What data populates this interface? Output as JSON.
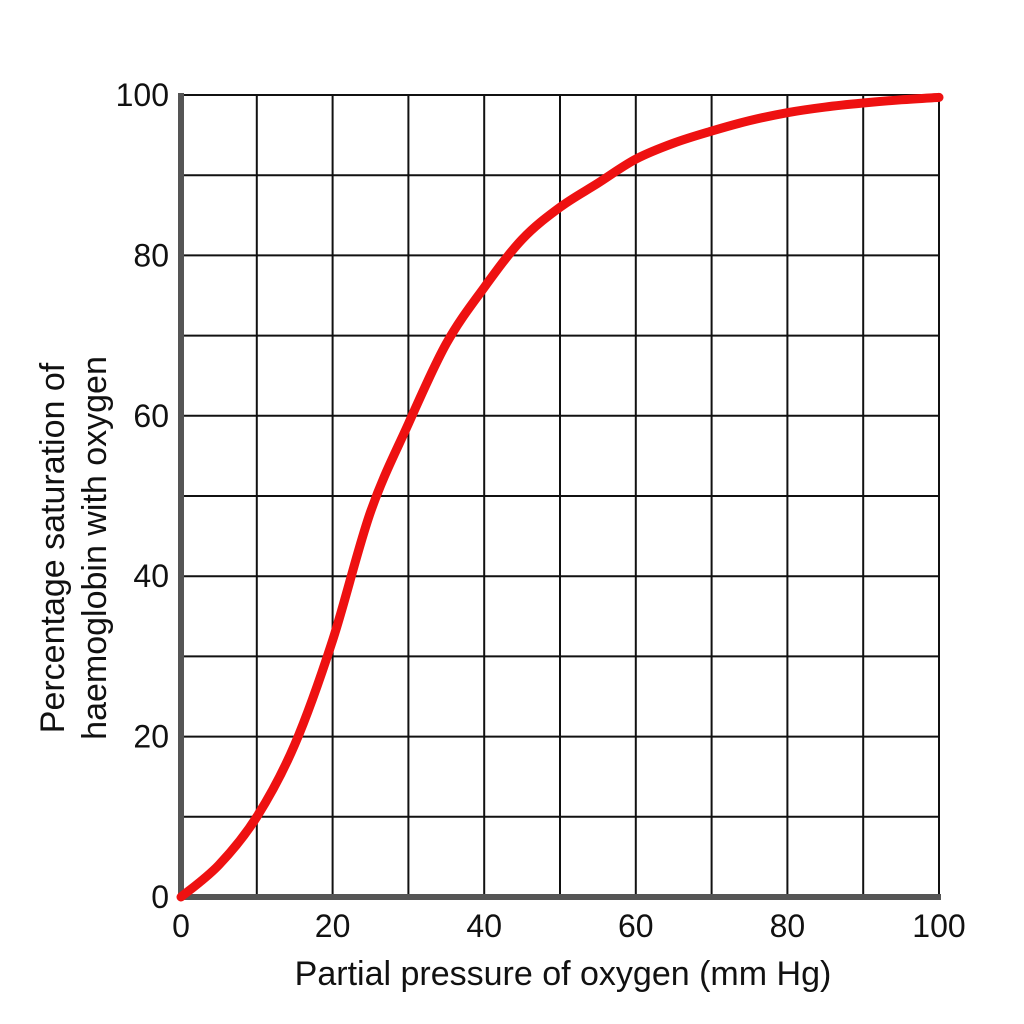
{
  "chart_data": {
    "type": "line",
    "title": "",
    "xlabel": "Partial pressure of oxygen (mm Hg)",
    "ylabel_lines": [
      "Percentage saturation of",
      "haemoglobin with oxygen"
    ],
    "xlim": [
      0,
      100
    ],
    "ylim": [
      0,
      100
    ],
    "x_ticks": [
      0,
      20,
      40,
      60,
      80,
      100
    ],
    "y_ticks": [
      0,
      20,
      40,
      60,
      80,
      100
    ],
    "x_tick_labels": [
      "0",
      "20",
      "40",
      "60",
      "80",
      "100"
    ],
    "y_tick_labels": [
      "0",
      "20",
      "40",
      "60",
      "80",
      "100"
    ],
    "grid": true,
    "grid_x_step": 10,
    "grid_y_step": 10,
    "legend": "none",
    "series": [
      {
        "color": "#ee1111",
        "x": [
          0,
          5,
          10,
          15,
          20,
          25,
          30,
          35,
          40,
          45,
          50,
          55,
          60,
          65,
          70,
          75,
          80,
          85,
          90,
          95,
          100
        ],
        "y": [
          0,
          4,
          10,
          19,
          32,
          48,
          59,
          69,
          76,
          82,
          86,
          89,
          92,
          94,
          95.5,
          96.8,
          97.8,
          98.5,
          99,
          99.4,
          99.7
        ]
      }
    ]
  }
}
